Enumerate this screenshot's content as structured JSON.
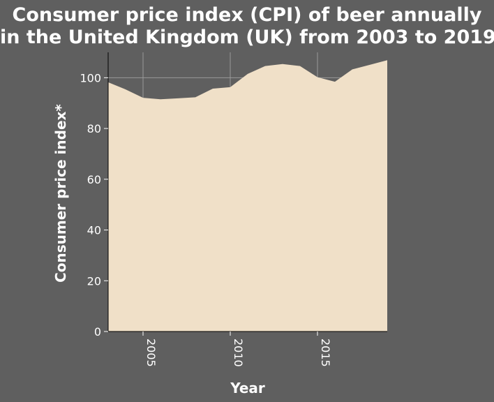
{
  "chart_data": {
    "type": "area",
    "title_lines": [
      "Consumer price index (CPI) of beer annually",
      "in the United Kingdom (UK) from 2003 to 2019"
    ],
    "xlabel": "Year",
    "ylabel": "Consumer price index*",
    "x": [
      2003,
      2004,
      2005,
      2006,
      2007,
      2008,
      2009,
      2010,
      2011,
      2012,
      2013,
      2014,
      2015,
      2016,
      2017,
      2018,
      2019
    ],
    "values": [
      98.2,
      95.4,
      92.1,
      91.5,
      91.9,
      92.3,
      95.7,
      96.3,
      101.5,
      104.6,
      105.4,
      104.6,
      100.2,
      98.4,
      103.3,
      105.1,
      106.9
    ],
    "xlim": [
      2003,
      2019
    ],
    "ylim": [
      0,
      110
    ],
    "x_ticks": [
      2005,
      2010,
      2015
    ],
    "y_ticks": [
      0,
      20,
      40,
      60,
      80,
      100
    ],
    "grid": true,
    "colors": {
      "background": "#5f5f5f",
      "area_fill": "#f0e0c8",
      "grid": "#9a9a9a",
      "text": "#ffffff"
    }
  }
}
